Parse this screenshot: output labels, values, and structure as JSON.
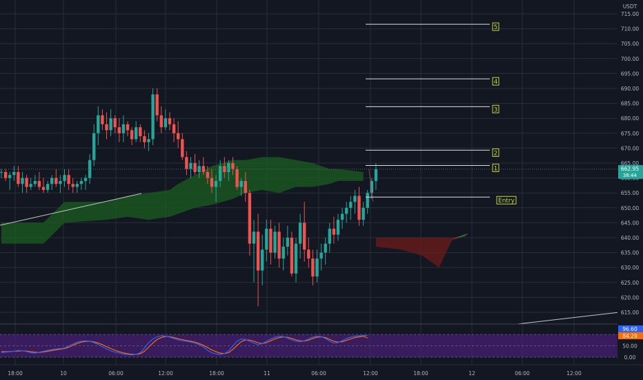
{
  "currency": "USDT",
  "price_axis": {
    "ticks": [
      "715.00",
      "710.00",
      "705.00",
      "700.00",
      "695.00",
      "690.00",
      "685.00",
      "680.00",
      "675.00",
      "670.00",
      "665.00",
      "660.00",
      "655.00",
      "650.00",
      "645.00",
      "640.00",
      "635.00",
      "630.00",
      "625.00",
      "620.00",
      "615.00"
    ]
  },
  "time_axis": {
    "labels": [
      "18:00",
      "10",
      "06:00",
      "12:00",
      "18:00",
      "11",
      "06:00",
      "12:00",
      "18:00",
      "12",
      "06:00",
      "12:00"
    ]
  },
  "last_price": {
    "value": "662.95",
    "countdown": "38:44"
  },
  "oscillator": {
    "ticks": [
      "100.00",
      "50.00",
      "0.00"
    ],
    "k_label": "96.60",
    "d_label": "84.29"
  },
  "targets": [
    {
      "label": "5",
      "price": 711.5
    },
    {
      "label": "4",
      "price": 693.2
    },
    {
      "label": "3",
      "price": 683.9
    },
    {
      "label": "2",
      "price": 669.3
    },
    {
      "label": "1",
      "price": 664.2
    }
  ],
  "entry": {
    "label": "Entry",
    "price": 653.6
  },
  "colors": {
    "up": "#26a69a",
    "down": "#ef5350",
    "cloud_green": "#1b5e20",
    "cloud_red": "#6d1b1b",
    "band": "#4a1f78",
    "k_line": "#2962ff",
    "d_line": "#ff6d00",
    "target_box": "#c6d63a"
  },
  "chart_data": {
    "type": "candlestick",
    "ylim": [
      613,
      717
    ],
    "candles": [
      [
        662,
        663,
        660,
        662
      ],
      [
        662,
        663,
        659,
        660
      ],
      [
        660,
        662,
        656,
        661
      ],
      [
        661,
        664,
        659,
        662
      ],
      [
        662,
        664,
        657,
        658
      ],
      [
        658,
        662,
        655,
        660
      ],
      [
        660,
        661,
        655,
        657
      ],
      [
        657,
        660,
        656,
        658
      ],
      [
        658,
        661,
        657,
        659
      ],
      [
        659,
        662,
        656,
        657
      ],
      [
        657,
        660,
        655,
        656
      ],
      [
        656,
        659,
        655,
        658
      ],
      [
        658,
        661,
        656,
        660
      ],
      [
        660,
        663,
        657,
        658
      ],
      [
        658,
        661,
        655,
        659
      ],
      [
        659,
        663,
        657,
        661
      ],
      [
        661,
        663,
        656,
        658
      ],
      [
        658,
        660,
        655,
        657
      ],
      [
        657,
        659,
        655,
        658
      ],
      [
        658,
        660,
        656,
        659
      ],
      [
        659,
        661,
        656,
        660
      ],
      [
        660,
        668,
        658,
        666
      ],
      [
        666,
        678,
        664,
        675
      ],
      [
        675,
        684,
        671,
        681
      ],
      [
        681,
        683,
        676,
        678
      ],
      [
        678,
        682,
        673,
        676
      ],
      [
        676,
        683,
        674,
        680
      ],
      [
        680,
        681,
        675,
        677
      ],
      [
        677,
        680,
        672,
        675
      ],
      [
        675,
        681,
        672,
        678
      ],
      [
        678,
        679,
        674,
        676
      ],
      [
        676,
        677,
        671,
        673
      ],
      [
        673,
        679,
        672,
        677
      ],
      [
        677,
        678,
        672,
        674
      ],
      [
        674,
        676,
        670,
        672
      ],
      [
        672,
        675,
        669,
        673
      ],
      [
        673,
        690,
        671,
        688
      ],
      [
        688,
        690,
        679,
        681
      ],
      [
        681,
        684,
        675,
        677
      ],
      [
        677,
        683,
        676,
        680
      ],
      [
        680,
        682,
        676,
        678
      ],
      [
        678,
        680,
        672,
        675
      ],
      [
        675,
        679,
        670,
        673
      ],
      [
        673,
        675,
        666,
        667
      ],
      [
        667,
        669,
        661,
        663
      ],
      [
        663,
        667,
        660,
        665
      ],
      [
        665,
        668,
        661,
        662
      ],
      [
        662,
        666,
        660,
        664
      ],
      [
        664,
        667,
        661,
        662
      ],
      [
        662,
        664,
        658,
        660
      ],
      [
        660,
        663,
        655,
        657
      ],
      [
        657,
        661,
        652,
        659
      ],
      [
        659,
        666,
        657,
        664
      ],
      [
        664,
        667,
        660,
        662
      ],
      [
        662,
        666,
        659,
        665
      ],
      [
        665,
        667,
        661,
        663
      ],
      [
        663,
        664,
        656,
        657
      ],
      [
        657,
        660,
        654,
        659
      ],
      [
        659,
        662,
        652,
        655
      ],
      [
        655,
        656,
        634,
        638
      ],
      [
        638,
        646,
        625,
        642
      ],
      [
        642,
        648,
        617,
        629
      ],
      [
        629,
        641,
        624,
        636
      ],
      [
        636,
        646,
        632,
        643
      ],
      [
        643,
        646,
        631,
        635
      ],
      [
        635,
        644,
        633,
        642
      ],
      [
        642,
        645,
        630,
        633
      ],
      [
        633,
        640,
        629,
        637
      ],
      [
        637,
        644,
        634,
        640
      ],
      [
        640,
        642,
        627,
        628
      ],
      [
        628,
        640,
        625,
        638
      ],
      [
        638,
        648,
        633,
        645
      ],
      [
        645,
        652,
        632,
        636
      ],
      [
        636,
        640,
        630,
        633
      ],
      [
        633,
        636,
        624,
        627
      ],
      [
        627,
        636,
        625,
        633
      ],
      [
        633,
        638,
        629,
        635
      ],
      [
        635,
        640,
        631,
        638
      ],
      [
        638,
        645,
        635,
        643
      ],
      [
        643,
        647,
        638,
        641
      ],
      [
        641,
        648,
        639,
        646
      ],
      [
        646,
        650,
        643,
        648
      ],
      [
        648,
        652,
        645,
        650
      ],
      [
        650,
        654,
        646,
        652
      ],
      [
        652,
        656,
        648,
        654
      ],
      [
        654,
        657,
        644,
        646
      ],
      [
        646,
        652,
        644,
        650
      ],
      [
        650,
        656,
        648,
        655
      ],
      [
        655,
        660,
        653,
        659
      ],
      [
        659,
        665,
        656,
        662.95
      ]
    ],
    "cloud": [
      [
        0,
        645,
        638
      ],
      [
        10,
        645,
        638
      ],
      [
        15,
        652,
        645
      ],
      [
        25,
        652,
        646
      ],
      [
        30,
        654,
        647
      ],
      [
        35,
        655,
        646
      ],
      [
        40,
        656,
        647
      ],
      [
        42,
        658,
        648
      ],
      [
        46,
        661,
        650
      ],
      [
        50,
        664,
        651
      ],
      [
        55,
        666,
        653
      ],
      [
        58,
        666,
        655
      ],
      [
        62,
        667,
        656
      ],
      [
        66,
        667,
        655
      ],
      [
        70,
        666,
        657
      ],
      [
        74,
        665,
        657
      ],
      [
        78,
        663,
        658
      ],
      [
        80,
        663,
        659
      ],
      [
        86,
        662,
        659
      ]
    ],
    "future_cloud": [
      [
        89,
        640,
        637
      ],
      [
        95,
        640,
        636
      ],
      [
        100,
        640,
        634
      ],
      [
        104,
        640,
        630
      ],
      [
        107,
        640,
        639
      ],
      [
        111,
        641,
        641
      ]
    ],
    "stoch_k": [
      20,
      22,
      24,
      26,
      30,
      28,
      25,
      20,
      18,
      22,
      26,
      30,
      34,
      36,
      38,
      40,
      50,
      58,
      66,
      70,
      72,
      70,
      64,
      56,
      46,
      36,
      28,
      22,
      18,
      14,
      12,
      10,
      12,
      20,
      40,
      64,
      80,
      90,
      94,
      92,
      88,
      82,
      76,
      72,
      70,
      66,
      62,
      55,
      45,
      30,
      20,
      14,
      12,
      16,
      28,
      50,
      70,
      80,
      78,
      70,
      62,
      55,
      60,
      70,
      80,
      88,
      92,
      90,
      84,
      76,
      70,
      68,
      72,
      80,
      88,
      92,
      90,
      82,
      70,
      62,
      64,
      72,
      82,
      88,
      92,
      94,
      95,
      96.6
    ],
    "stoch_d": [
      25,
      24,
      25,
      26,
      27,
      28,
      27,
      24,
      22,
      21,
      23,
      26,
      29,
      32,
      35,
      38,
      44,
      52,
      60,
      66,
      69,
      70,
      67,
      62,
      55,
      46,
      38,
      30,
      24,
      19,
      15,
      13,
      12,
      15,
      26,
      44,
      62,
      78,
      86,
      91,
      90,
      86,
      81,
      77,
      73,
      70,
      66,
      60,
      52,
      42,
      32,
      24,
      18,
      16,
      20,
      34,
      52,
      68,
      76,
      75,
      70,
      63,
      60,
      64,
      72,
      80,
      86,
      89,
      87,
      82,
      76,
      72,
      71,
      75,
      82,
      88,
      89,
      86,
      78,
      70,
      66,
      68,
      74,
      80,
      86,
      89,
      92,
      84.29
    ]
  }
}
